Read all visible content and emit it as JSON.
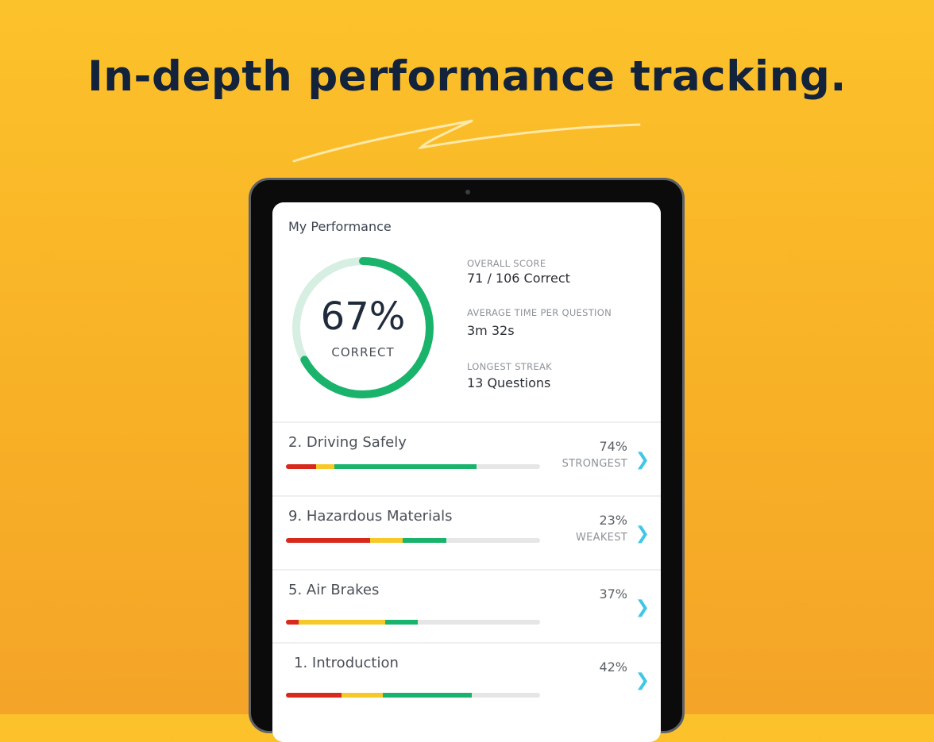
{
  "headline": "In-depth performance tracking.",
  "colors": {
    "background": "#fcc22b",
    "ring": "#19b36b",
    "ring_track": "#d6efe2",
    "red": "#d72a1c",
    "yellow": "#f7c928",
    "green": "#19b36b",
    "chevron": "#3ec7e6"
  },
  "screen": {
    "title": "My Performance",
    "score": {
      "percent_label": "67%",
      "percent": 67,
      "caption": "CORRECT"
    },
    "stats": [
      {
        "label": "OVERALL SCORE",
        "value": "71 / 106 Correct"
      },
      {
        "label": "AVERAGE TIME PER QUESTION",
        "value": "3m 32s"
      },
      {
        "label": "LONGEST STREAK",
        "value": "13 Questions"
      }
    ],
    "topics": [
      {
        "name": "2. Driving Safely",
        "percent": "74%",
        "tag": "STRONGEST",
        "segments": {
          "red": 12,
          "yellow": 7,
          "green": 56
        }
      },
      {
        "name": "9. Hazardous Materials",
        "percent": "23%",
        "tag": "WEAKEST",
        "segments": {
          "red": 33,
          "yellow": 13,
          "green": 17
        }
      },
      {
        "name": "5. Air Brakes",
        "percent": "37%",
        "tag": "",
        "segments": {
          "red": 5,
          "yellow": 34,
          "green": 13
        }
      },
      {
        "name": "1. Introduction",
        "percent": "42%",
        "tag": "",
        "segments": {
          "red": 22,
          "yellow": 16,
          "green": 35
        }
      }
    ]
  }
}
